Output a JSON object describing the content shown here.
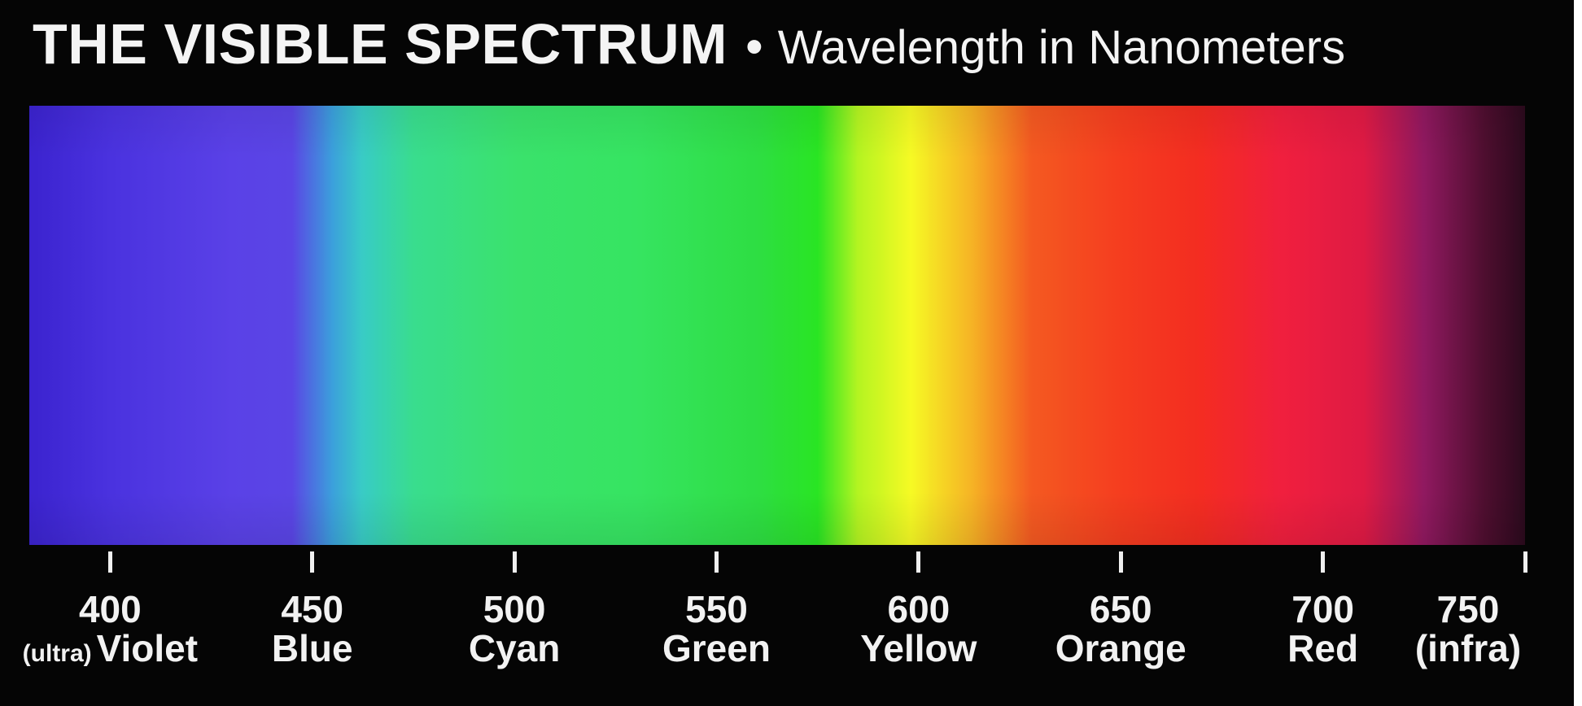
{
  "title": {
    "main": "THE VISIBLE SPECTRUM",
    "separator": "•",
    "subtitle": "Wavelength in Nanometers"
  },
  "scale": {
    "min_nm": 380,
    "max_nm": 750,
    "ticks": [
      {
        "value": 400,
        "label": "400",
        "name": "Violet",
        "prefix": "(ultra)"
      },
      {
        "value": 450,
        "label": "450",
        "name": "Blue",
        "prefix": ""
      },
      {
        "value": 500,
        "label": "500",
        "name": "Cyan",
        "prefix": ""
      },
      {
        "value": 550,
        "label": "550",
        "name": "Green",
        "prefix": ""
      },
      {
        "value": 600,
        "label": "600",
        "name": "Yellow",
        "prefix": ""
      },
      {
        "value": 650,
        "label": "650",
        "name": "Orange",
        "prefix": ""
      },
      {
        "value": 700,
        "label": "700",
        "name": "Red",
        "prefix": ""
      },
      {
        "value": 750,
        "label": "750",
        "name": "(infra)",
        "prefix": ""
      }
    ]
  },
  "spectrum_colors": [
    {
      "nm": 380,
      "color": "#3b24c8"
    },
    {
      "nm": 400,
      "color": "#4a33d8"
    },
    {
      "nm": 430,
      "color": "#5a42e0"
    },
    {
      "nm": 445,
      "color": "#5a46de"
    },
    {
      "nm": 455,
      "color": "#3f9fd8"
    },
    {
      "nm": 462,
      "color": "#3ec9c6"
    },
    {
      "nm": 475,
      "color": "#3fdb90"
    },
    {
      "nm": 500,
      "color": "#40e070"
    },
    {
      "nm": 530,
      "color": "#3ce265"
    },
    {
      "nm": 560,
      "color": "#34dc48"
    },
    {
      "nm": 575,
      "color": "#2fe22a"
    },
    {
      "nm": 585,
      "color": "#b6f32a"
    },
    {
      "nm": 598,
      "color": "#f5f92d"
    },
    {
      "nm": 613,
      "color": "#f3b42c"
    },
    {
      "nm": 628,
      "color": "#ee5a25"
    },
    {
      "nm": 650,
      "color": "#ee3f22"
    },
    {
      "nm": 670,
      "color": "#ec2e24"
    },
    {
      "nm": 690,
      "color": "#e8213f"
    },
    {
      "nm": 710,
      "color": "#d81c44"
    },
    {
      "nm": 725,
      "color": "#8c1a5e"
    },
    {
      "nm": 740,
      "color": "#4c0f2e"
    },
    {
      "nm": 750,
      "color": "#2a0a1c"
    }
  ],
  "colors": {
    "background": "#050505",
    "text": "#f2f2f2"
  }
}
